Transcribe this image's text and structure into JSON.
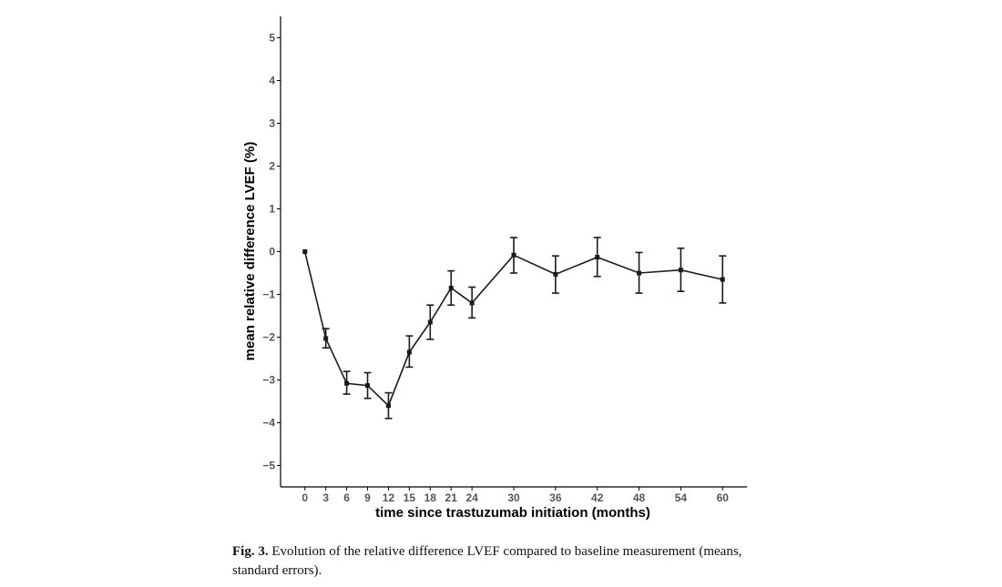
{
  "chart_data": {
    "type": "line",
    "xlabel": "time since trastuzumab initiation (months)",
    "ylabel": "mean relative difference LVEF (%)",
    "xticks": [
      0,
      3,
      6,
      9,
      12,
      15,
      18,
      21,
      24,
      30,
      36,
      42,
      48,
      54,
      60
    ],
    "yticks": [
      -5,
      -4,
      -3,
      -2,
      -1,
      0,
      1,
      2,
      3,
      4,
      5
    ],
    "xlim": [
      -3.5,
      63.5
    ],
    "ylim": [
      -5.5,
      5.5
    ],
    "grid": false,
    "series": [
      {
        "x": [
          0,
          3,
          6,
          9,
          12,
          15,
          18,
          21,
          24,
          30,
          36,
          42,
          48,
          54,
          60
        ],
        "y": [
          0,
          -2.03,
          -3.08,
          -3.13,
          -3.6,
          -2.35,
          -1.65,
          -0.85,
          -1.2,
          -0.08,
          -0.53,
          -0.13,
          -0.5,
          -0.43,
          -0.65
        ],
        "lower": [
          0,
          -2.25,
          -3.33,
          -3.43,
          -3.9,
          -2.7,
          -2.05,
          -1.25,
          -1.55,
          -0.5,
          -0.97,
          -0.58,
          -0.97,
          -0.93,
          -1.2
        ],
        "upper": [
          0,
          -1.8,
          -2.8,
          -2.83,
          -3.3,
          -1.97,
          -1.25,
          -0.45,
          -0.83,
          0.33,
          -0.1,
          0.33,
          -0.02,
          0.08,
          -0.1
        ]
      }
    ],
    "colors": {
      "line": "#1a1a1a",
      "axis": "#000000",
      "tick_label": "#555555"
    }
  },
  "caption": {
    "label": "Fig. 3.",
    "text": "Evolution of the relative difference LVEF compared to baseline measurement (means, standard errors)."
  }
}
